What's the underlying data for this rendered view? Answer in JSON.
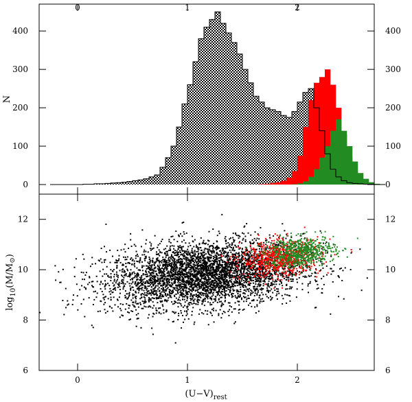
{
  "chart_data": [
    {
      "type": "bar",
      "panel": "histogram",
      "xlim": [
        -0.35,
        2.7
      ],
      "ylim": [
        -25,
        470
      ],
      "ylabel": "N",
      "xticks": [
        0,
        1,
        2
      ],
      "yticks": [
        0,
        100,
        200,
        300,
        400
      ],
      "bin_width": 0.05,
      "bin_start": -0.25,
      "series": [
        {
          "color": "#ffffff",
          "pattern": "checkered",
          "values": [
            0,
            0,
            0,
            0,
            0,
            0,
            1,
            1,
            2,
            2,
            3,
            4,
            5,
            6,
            8,
            10,
            12,
            15,
            20,
            25,
            45,
            70,
            100,
            150,
            210,
            260,
            320,
            380,
            410,
            430,
            450,
            420,
            395,
            370,
            340,
            300,
            265,
            230,
            215,
            200,
            195,
            190,
            180,
            175,
            190,
            215,
            240,
            250,
            200,
            140,
            80,
            40,
            20,
            10,
            5,
            3,
            2,
            1,
            1,
            0,
            0
          ]
        },
        {
          "color": "#ff0000",
          "values": [
            0,
            0,
            0,
            0,
            0,
            0,
            0,
            0,
            0,
            0,
            0,
            0,
            0,
            0,
            0,
            0,
            0,
            0,
            0,
            0,
            0,
            0,
            0,
            0,
            0,
            0,
            0,
            0,
            0,
            0,
            0,
            0,
            0,
            0,
            0,
            0,
            0,
            0,
            1,
            2,
            4,
            6,
            10,
            18,
            35,
            75,
            150,
            220,
            265,
            280,
            300,
            260,
            200,
            130,
            70,
            35,
            15,
            6,
            2,
            1,
            0
          ]
        },
        {
          "color": "#228b22",
          "values": [
            0,
            0,
            0,
            0,
            0,
            0,
            0,
            0,
            0,
            0,
            0,
            0,
            0,
            0,
            0,
            0,
            0,
            0,
            0,
            0,
            0,
            0,
            0,
            0,
            0,
            0,
            0,
            0,
            0,
            0,
            0,
            0,
            0,
            0,
            0,
            0,
            0,
            0,
            0,
            0,
            0,
            0,
            0,
            0,
            1,
            3,
            8,
            20,
            40,
            70,
            100,
            140,
            170,
            140,
            100,
            60,
            30,
            15,
            6,
            2,
            1
          ]
        }
      ]
    },
    {
      "type": "scatter",
      "panel": "scatter",
      "xlim": [
        -0.35,
        2.7
      ],
      "ylim": [
        6,
        13
      ],
      "xlabel_main": "(U−V)",
      "xlabel_sub": "rest",
      "ylabel_main": "log",
      "ylabel_sub": "10",
      "ylabel_tail": "(M/M",
      "ylabel_end": ")",
      "xticks": [
        0,
        1,
        2
      ],
      "yticks": [
        6,
        8,
        10,
        12
      ],
      "series": [
        {
          "color": "#000000",
          "count": 4200,
          "x_center": 1.15,
          "y_center": 9.8,
          "x_spread": 0.45,
          "y_spread": 0.65
        },
        {
          "color": "#ff0000",
          "count": 750,
          "x_center": 1.85,
          "y_center": 10.45,
          "x_spread": 0.18,
          "y_spread": 0.35
        },
        {
          "color": "#228b22",
          "count": 650,
          "x_center": 2.02,
          "y_center": 10.7,
          "x_spread": 0.16,
          "y_spread": 0.3
        }
      ]
    }
  ]
}
